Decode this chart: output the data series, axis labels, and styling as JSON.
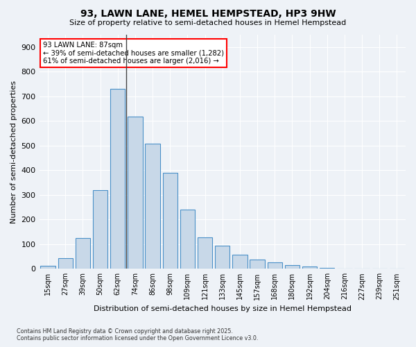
{
  "title": "93, LAWN LANE, HEMEL HEMPSTEAD, HP3 9HW",
  "subtitle": "Size of property relative to semi-detached houses in Hemel Hempstead",
  "xlabel": "Distribution of semi-detached houses by size in Hemel Hempstead",
  "ylabel": "Number of semi-detached properties",
  "categories": [
    "15sqm",
    "27sqm",
    "39sqm",
    "50sqm",
    "62sqm",
    "74sqm",
    "86sqm",
    "98sqm",
    "109sqm",
    "121sqm",
    "133sqm",
    "145sqm",
    "157sqm",
    "168sqm",
    "180sqm",
    "192sqm",
    "204sqm",
    "216sqm",
    "227sqm",
    "239sqm",
    "251sqm"
  ],
  "values": [
    13,
    42,
    125,
    318,
    730,
    618,
    508,
    390,
    240,
    128,
    93,
    57,
    38,
    25,
    15,
    8,
    5,
    2,
    1,
    1,
    0
  ],
  "bar_color": "#c8d8e8",
  "bar_edge_color": "#4a90c8",
  "marker_label": "93 LAWN LANE: 87sqm",
  "annotation_line1": "← 39% of semi-detached houses are smaller (1,282)",
  "annotation_line2": "61% of semi-detached houses are larger (2,016) →",
  "footer1": "Contains HM Land Registry data © Crown copyright and database right 2025.",
  "footer2": "Contains public sector information licensed under the Open Government Licence v3.0.",
  "ylim": [
    0,
    950
  ],
  "yticks": [
    0,
    100,
    200,
    300,
    400,
    500,
    600,
    700,
    800,
    900
  ],
  "background_color": "#eef2f7",
  "plot_background": "#eef2f7",
  "marker_bar_index": 4.5
}
